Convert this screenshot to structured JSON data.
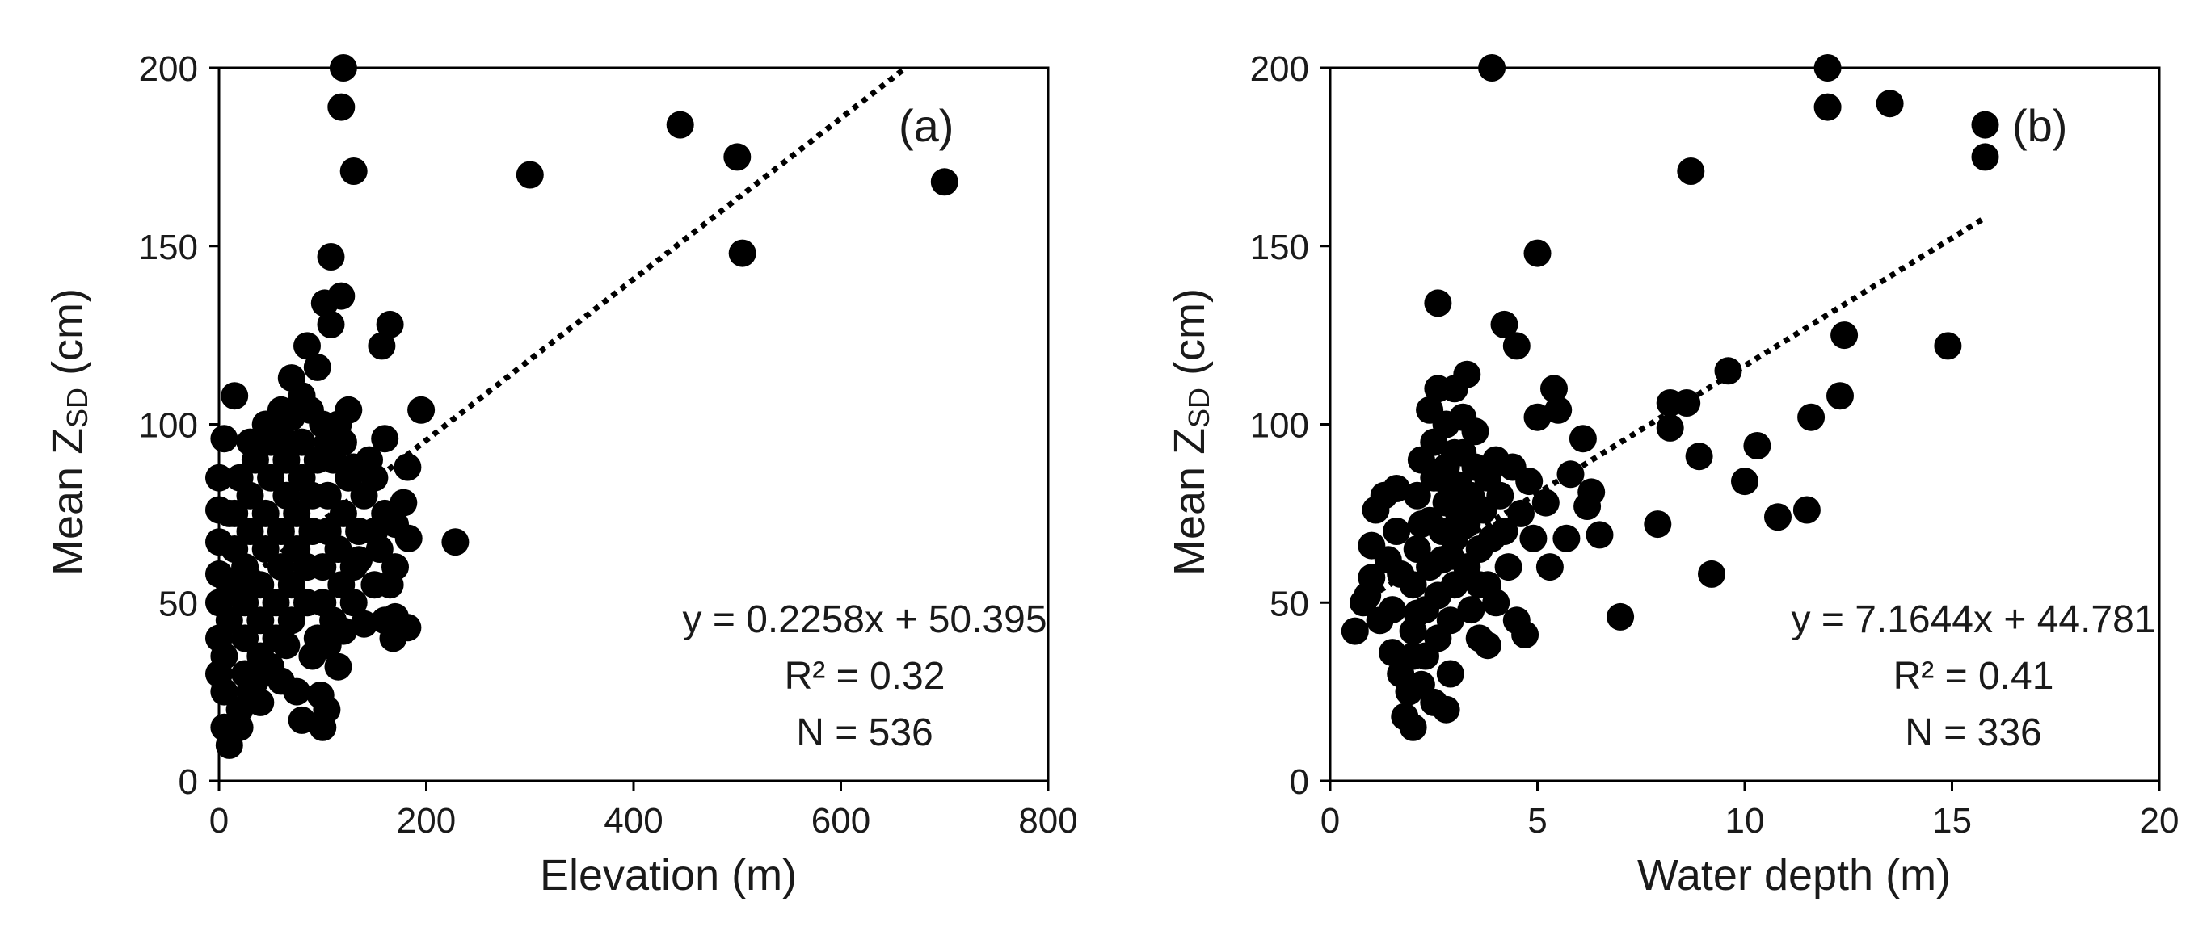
{
  "figure_colors": {
    "marker": "#000000",
    "axis": "#000000",
    "trend": "#000000",
    "background": "#ffffff"
  },
  "chart_data": [
    {
      "type": "scatter",
      "panel_label": "(a)",
      "xlabel": "Elevation (m)",
      "ylabel_prefix": "Mean Z",
      "ylabel_sub": "SD",
      "ylabel_suffix": " (cm)",
      "xlim": [
        0,
        800
      ],
      "ylim": [
        0,
        200
      ],
      "xticks": [
        0,
        200,
        400,
        600,
        800
      ],
      "yticks": [
        0,
        50,
        100,
        150,
        200
      ],
      "grid": false,
      "trendline": {
        "slope": 0.2258,
        "intercept": 50.395,
        "x_range": [
          0,
          660
        ],
        "style": "dotted"
      },
      "equation": "y = 0.2258x + 50.395",
      "r2_label": "R² = 0.32",
      "n_label": "N = 536",
      "points": [
        [
          120,
          200
        ],
        [
          118,
          189
        ],
        [
          130,
          171
        ],
        [
          108,
          147
        ],
        [
          118,
          136
        ],
        [
          102,
          134
        ],
        [
          108,
          128
        ],
        [
          165,
          128
        ],
        [
          157,
          122
        ],
        [
          85,
          122
        ],
        [
          70,
          113
        ],
        [
          95,
          116
        ],
        [
          88,
          104
        ],
        [
          60,
          104
        ],
        [
          195,
          104
        ],
        [
          125,
          104
        ],
        [
          15,
          108
        ],
        [
          5,
          96
        ],
        [
          160,
          96
        ],
        [
          100,
          100
        ],
        [
          445,
          184
        ],
        [
          500,
          175
        ],
        [
          300,
          170
        ],
        [
          700,
          168
        ],
        [
          505,
          148
        ],
        [
          228,
          67
        ],
        [
          182,
          88
        ],
        [
          178,
          78
        ],
        [
          183,
          68
        ],
        [
          182,
          43
        ],
        [
          170,
          46
        ],
        [
          168,
          40
        ],
        [
          140,
          44
        ],
        [
          115,
          32
        ],
        [
          118,
          55
        ],
        [
          135,
          62
        ],
        [
          150,
          70
        ],
        [
          150,
          85
        ],
        [
          160,
          75
        ],
        [
          170,
          60
        ],
        [
          100,
          15
        ],
        [
          80,
          17
        ],
        [
          104,
          20
        ],
        [
          98,
          24
        ],
        [
          10,
          10
        ],
        [
          5,
          15
        ],
        [
          20,
          15
        ],
        [
          40,
          22
        ],
        [
          30,
          25
        ],
        [
          60,
          28
        ],
        [
          0,
          30
        ],
        [
          0,
          40
        ],
        [
          0,
          50
        ],
        [
          0,
          58
        ],
        [
          0,
          67
        ],
        [
          0,
          76
        ],
        [
          0,
          85
        ],
        [
          5,
          35
        ],
        [
          10,
          45
        ],
        [
          10,
          55
        ],
        [
          15,
          65
        ],
        [
          15,
          75
        ],
        [
          20,
          85
        ],
        [
          25,
          30
        ],
        [
          25,
          40
        ],
        [
          25,
          50
        ],
        [
          25,
          60
        ],
        [
          30,
          70
        ],
        [
          30,
          80
        ],
        [
          35,
          90
        ],
        [
          40,
          35
        ],
        [
          40,
          45
        ],
        [
          40,
          55
        ],
        [
          45,
          65
        ],
        [
          45,
          75
        ],
        [
          50,
          85
        ],
        [
          50,
          95
        ],
        [
          55,
          40
        ],
        [
          55,
          50
        ],
        [
          60,
          60
        ],
        [
          60,
          70
        ],
        [
          65,
          80
        ],
        [
          65,
          90
        ],
        [
          70,
          45
        ],
        [
          70,
          55
        ],
        [
          75,
          65
        ],
        [
          75,
          75
        ],
        [
          80,
          85
        ],
        [
          80,
          95
        ],
        [
          85,
          50
        ],
        [
          85,
          60
        ],
        [
          90,
          70
        ],
        [
          90,
          80
        ],
        [
          95,
          90
        ],
        [
          95,
          40
        ],
        [
          100,
          50
        ],
        [
          100,
          60
        ],
        [
          105,
          70
        ],
        [
          105,
          80
        ],
        [
          110,
          90
        ],
        [
          110,
          45
        ],
        [
          115,
          65
        ],
        [
          120,
          75
        ],
        [
          125,
          85
        ],
        [
          130,
          50
        ],
        [
          130,
          60
        ],
        [
          135,
          70
        ],
        [
          140,
          80
        ],
        [
          145,
          90
        ],
        [
          150,
          55
        ],
        [
          155,
          65
        ],
        [
          160,
          45
        ],
        [
          165,
          55
        ],
        [
          170,
          72
        ],
        [
          20,
          20
        ],
        [
          35,
          28
        ],
        [
          50,
          32
        ],
        [
          65,
          38
        ],
        [
          75,
          25
        ],
        [
          90,
          35
        ],
        [
          105,
          38
        ],
        [
          120,
          42
        ],
        [
          45,
          100
        ],
        [
          55,
          98
        ],
        [
          70,
          102
        ],
        [
          80,
          108
        ],
        [
          65,
          95
        ],
        [
          105,
          95
        ],
        [
          115,
          100
        ],
        [
          120,
          95
        ],
        [
          130,
          88
        ],
        [
          30,
          95
        ],
        [
          10,
          75
        ],
        [
          20,
          55
        ],
        [
          5,
          25
        ]
      ]
    },
    {
      "type": "scatter",
      "panel_label": "(b)",
      "xlabel": "Water depth  (m)",
      "ylabel_prefix": "Mean Z",
      "ylabel_sub": "SD",
      "ylabel_suffix": " (cm)",
      "xlim": [
        0,
        20
      ],
      "ylim": [
        0,
        200
      ],
      "xticks": [
        0,
        5,
        10,
        15,
        20
      ],
      "yticks": [
        0,
        50,
        100,
        150,
        200
      ],
      "grid": false,
      "trendline": {
        "slope": 7.1644,
        "intercept": 44.781,
        "x_range": [
          0.5,
          15.8
        ],
        "style": "dotted"
      },
      "equation": "y = 7.1644x + 44.781",
      "r2_label": "R² = 0.41",
      "n_label": "N = 336",
      "points": [
        [
          3.9,
          200
        ],
        [
          12.0,
          200
        ],
        [
          12.0,
          189
        ],
        [
          13.5,
          190
        ],
        [
          15.8,
          184
        ],
        [
          15.8,
          175
        ],
        [
          8.7,
          171
        ],
        [
          5.0,
          148
        ],
        [
          2.6,
          134
        ],
        [
          4.2,
          128
        ],
        [
          4.5,
          122
        ],
        [
          14.9,
          122
        ],
        [
          12.4,
          125
        ],
        [
          9.6,
          115
        ],
        [
          3.3,
          114
        ],
        [
          2.6,
          110
        ],
        [
          5.4,
          110
        ],
        [
          12.3,
          108
        ],
        [
          8.2,
          106
        ],
        [
          8.6,
          106
        ],
        [
          11.6,
          102
        ],
        [
          5.0,
          102
        ],
        [
          5.5,
          104
        ],
        [
          8.2,
          99
        ],
        [
          6.1,
          96
        ],
        [
          8.9,
          91
        ],
        [
          10.3,
          94
        ],
        [
          10.0,
          84
        ],
        [
          6.3,
          81
        ],
        [
          6.2,
          77
        ],
        [
          11.5,
          76
        ],
        [
          10.8,
          74
        ],
        [
          7.9,
          72
        ],
        [
          6.5,
          69
        ],
        [
          5.7,
          68
        ],
        [
          5.3,
          60
        ],
        [
          9.2,
          58
        ],
        [
          7.0,
          46
        ],
        [
          4.7,
          41
        ],
        [
          3.8,
          38
        ],
        [
          0.6,
          42
        ],
        [
          0.9,
          52
        ],
        [
          1.0,
          57
        ],
        [
          1.0,
          66
        ],
        [
          1.1,
          76
        ],
        [
          1.3,
          80
        ],
        [
          1.4,
          62
        ],
        [
          1.5,
          48
        ],
        [
          1.5,
          36
        ],
        [
          1.6,
          70
        ],
        [
          1.7,
          30
        ],
        [
          1.8,
          18
        ],
        [
          2.0,
          15
        ],
        [
          2.0,
          42
        ],
        [
          2.0,
          55
        ],
        [
          2.1,
          65
        ],
        [
          2.1,
          80
        ],
        [
          2.2,
          90
        ],
        [
          2.2,
          27
        ],
        [
          2.3,
          35
        ],
        [
          2.3,
          48
        ],
        [
          2.4,
          60
        ],
        [
          2.4,
          73
        ],
        [
          2.5,
          85
        ],
        [
          2.5,
          95
        ],
        [
          2.6,
          40
        ],
        [
          2.6,
          52
        ],
        [
          2.7,
          62
        ],
        [
          2.7,
          70
        ],
        [
          2.8,
          78
        ],
        [
          2.8,
          88
        ],
        [
          2.8,
          100
        ],
        [
          2.9,
          30
        ],
        [
          2.9,
          45
        ],
        [
          3.0,
          55
        ],
        [
          3.0,
          68
        ],
        [
          3.1,
          75
        ],
        [
          3.1,
          83
        ],
        [
          3.2,
          92
        ],
        [
          3.2,
          102
        ],
        [
          3.3,
          60
        ],
        [
          3.3,
          72
        ],
        [
          3.4,
          80
        ],
        [
          3.4,
          48
        ],
        [
          3.5,
          88
        ],
        [
          3.6,
          65
        ],
        [
          3.6,
          55
        ],
        [
          3.7,
          76
        ],
        [
          3.8,
          85
        ],
        [
          3.9,
          68
        ],
        [
          4.0,
          90
        ],
        [
          4.0,
          50
        ],
        [
          4.1,
          80
        ],
        [
          4.2,
          70
        ],
        [
          4.3,
          60
        ],
        [
          4.4,
          88
        ],
        [
          4.6,
          75
        ],
        [
          4.8,
          84
        ],
        [
          2.8,
          20
        ],
        [
          2.5,
          22
        ],
        [
          1.9,
          25
        ],
        [
          1.2,
          45
        ],
        [
          1.7,
          58
        ],
        [
          2.2,
          72
        ],
        [
          2.6,
          85
        ],
        [
          3.0,
          92
        ],
        [
          3.5,
          98
        ],
        [
          2.4,
          104
        ],
        [
          3.0,
          110
        ],
        [
          1.6,
          82
        ],
        [
          0.8,
          50
        ],
        [
          2.0,
          35
        ],
        [
          3.6,
          40
        ],
        [
          4.5,
          45
        ],
        [
          5.2,
          78
        ],
        [
          5.8,
          86
        ],
        [
          4.9,
          68
        ],
        [
          3.8,
          55
        ],
        [
          2.9,
          63
        ],
        [
          2.1,
          47
        ]
      ]
    }
  ]
}
